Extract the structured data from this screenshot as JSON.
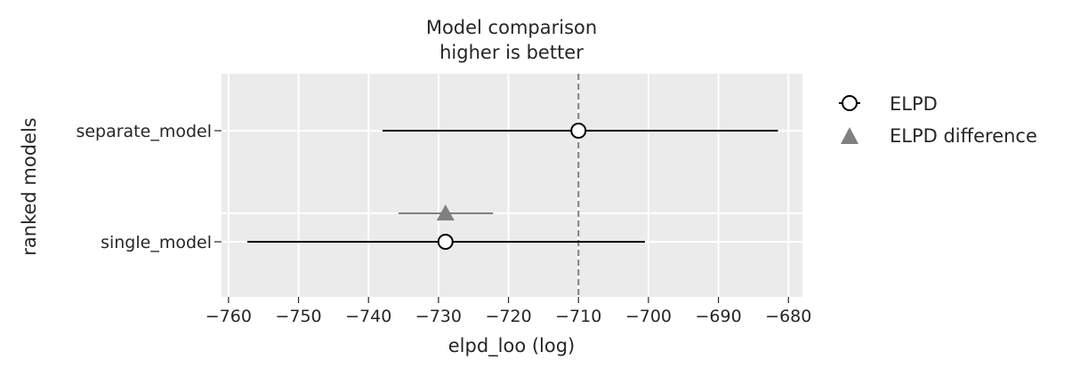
{
  "chart_data": {
    "type": "scatter",
    "title": "Model comparison",
    "subtitle": "higher is better",
    "xlabel": "elpd_loo (log)",
    "ylabel": "ranked models",
    "xlim": [
      -761,
      -678
    ],
    "x_ticks": [
      -760,
      -750,
      -740,
      -730,
      -720,
      -710,
      -700,
      -690,
      -680
    ],
    "x_tick_labels": [
      "−760",
      "−750",
      "−740",
      "−730",
      "−720",
      "−710",
      "−700",
      "−690",
      "−680"
    ],
    "models": [
      "separate_model",
      "single_model"
    ],
    "grid": true,
    "reference_line": {
      "x": -710,
      "style": "dashed",
      "color": "#808080"
    },
    "series": [
      {
        "name": "ELPD",
        "marker": "circle",
        "color": "#000000",
        "points": [
          {
            "model": "separate_model",
            "elpd": -710,
            "lower": -738,
            "upper": -681.5
          },
          {
            "model": "single_model",
            "elpd": -729,
            "lower": -757.3,
            "upper": -700.5
          }
        ]
      },
      {
        "name": "ELPD difference",
        "marker": "triangle",
        "color": "#808080",
        "points": [
          {
            "model": "single_model",
            "elpd": -729,
            "lower": -735.7,
            "upper": -722.2
          }
        ]
      }
    ],
    "legend_position": "right"
  },
  "colors": {
    "panel": "#ebebeb",
    "grid": "#ffffff",
    "elpd": "#000000",
    "diff": "#808080"
  }
}
